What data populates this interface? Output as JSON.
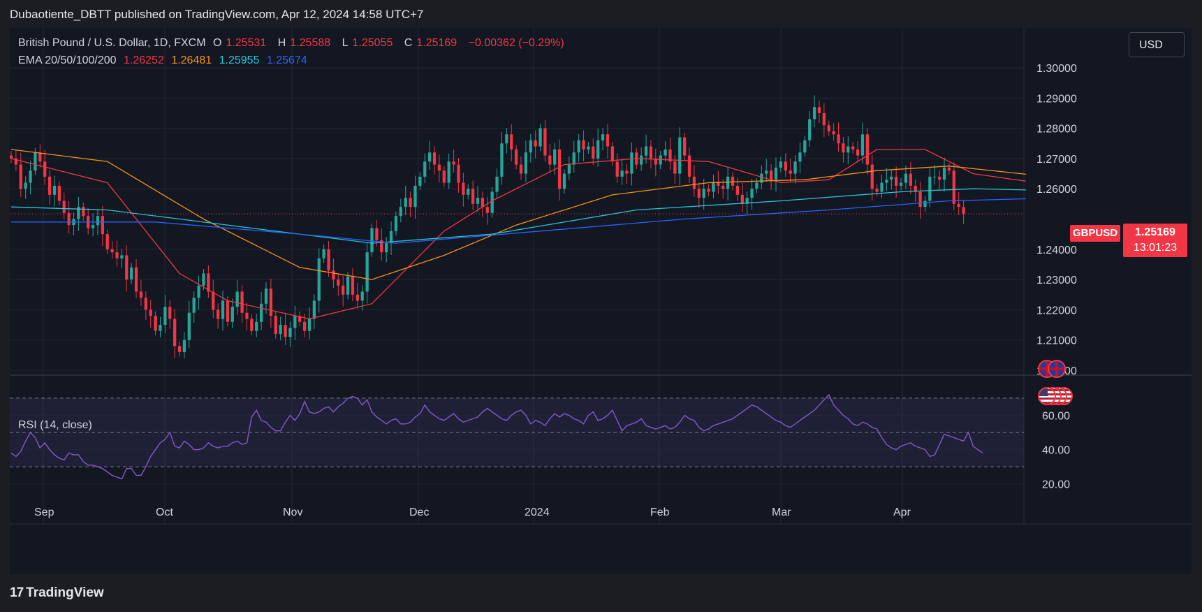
{
  "header": {
    "published": "Dubaotiente_DBTT published on TradingView.com, Apr 12, 2024 14:58 UTC+7"
  },
  "legend": {
    "title": "British Pound / U.S. Dollar, 1D, FXCM",
    "o_label": "O",
    "o": "1.25531",
    "h_label": "H",
    "h": "1.25588",
    "l_label": "L",
    "l": "1.25055",
    "c_label": "C",
    "c": "1.25169",
    "change": "−0.00362 (−0.29%)",
    "ema_label": "EMA 20/50/100/200",
    "ema20": "1.26252",
    "ema50": "1.26481",
    "ema100": "1.25955",
    "ema200": "1.25674",
    "rsi_label": "RSI (14, close)"
  },
  "toolbar": {
    "currency": "USD"
  },
  "price_tag": {
    "symbol": "GBPUSD",
    "price": "1.25169",
    "countdown": "13:01:23"
  },
  "footer": {
    "brand": "TradingView",
    "brand_mark": "17"
  },
  "colors": {
    "bg": "#131722",
    "up": "#26a69a",
    "down": "#f23645",
    "ema20": "#f23645",
    "ema50": "#f7931a",
    "ema100": "#26c6da",
    "ema200": "#2962ff",
    "rsi": "#7e57c2",
    "grid": "#232735",
    "text": "#d1d4dc"
  },
  "chart_data": [
    {
      "type": "candlestick",
      "x_labels": [
        "Sep",
        "Oct",
        "Nov",
        "Dec",
        "2024",
        "Feb",
        "Mar",
        "Apr"
      ],
      "y_ticks": [
        "1.30000",
        "1.29000",
        "1.28000",
        "1.27000",
        "1.26000",
        "1.24000",
        "1.23000",
        "1.22000",
        "1.21000",
        "1.20000"
      ],
      "ylim": [
        1.2,
        1.3
      ],
      "last_price": 1.25169,
      "closes": [
        1.27,
        1.268,
        1.26,
        1.262,
        1.266,
        1.272,
        1.269,
        1.264,
        1.258,
        1.261,
        1.256,
        1.252,
        1.248,
        1.25,
        1.254,
        1.251,
        1.247,
        1.248,
        1.251,
        1.245,
        1.24,
        1.239,
        1.237,
        1.238,
        1.23,
        1.234,
        1.226,
        1.224,
        1.22,
        1.218,
        1.213,
        1.215,
        1.221,
        1.217,
        1.208,
        1.206,
        1.21,
        1.219,
        1.224,
        1.228,
        1.232,
        1.226,
        1.22,
        1.217,
        1.223,
        1.216,
        1.221,
        1.226,
        1.219,
        1.217,
        1.213,
        1.216,
        1.222,
        1.227,
        1.218,
        1.212,
        1.215,
        1.211,
        1.214,
        1.218,
        1.216,
        1.213,
        1.217,
        1.223,
        1.237,
        1.24,
        1.233,
        1.23,
        1.228,
        1.225,
        1.231,
        1.225,
        1.223,
        1.226,
        1.239,
        1.247,
        1.243,
        1.239,
        1.242,
        1.246,
        1.251,
        1.254,
        1.257,
        1.254,
        1.261,
        1.264,
        1.269,
        1.272,
        1.268,
        1.266,
        1.262,
        1.269,
        1.268,
        1.262,
        1.258,
        1.26,
        1.255,
        1.257,
        1.254,
        1.252,
        1.259,
        1.264,
        1.275,
        1.278,
        1.273,
        1.268,
        1.265,
        1.272,
        1.276,
        1.274,
        1.28,
        1.271,
        1.268,
        1.273,
        1.26,
        1.265,
        1.268,
        1.272,
        1.276,
        1.273,
        1.274,
        1.27,
        1.276,
        1.278,
        1.274,
        1.269,
        1.264,
        1.266,
        1.265,
        1.272,
        1.268,
        1.271,
        1.274,
        1.27,
        1.268,
        1.271,
        1.273,
        1.269,
        1.265,
        1.277,
        1.271,
        1.264,
        1.26,
        1.257,
        1.26,
        1.259,
        1.262,
        1.261,
        1.26,
        1.264,
        1.261,
        1.258,
        1.255,
        1.257,
        1.26,
        1.262,
        1.265,
        1.266,
        1.263,
        1.267,
        1.269,
        1.266,
        1.265,
        1.269,
        1.272,
        1.276,
        1.283,
        1.287,
        1.285,
        1.281,
        1.279,
        1.278,
        1.275,
        1.272,
        1.274,
        1.273,
        1.271,
        1.278,
        1.268,
        1.26,
        1.259,
        1.262,
        1.263,
        1.264,
        1.261,
        1.262,
        1.265,
        1.261,
        1.259,
        1.254,
        1.256,
        1.264,
        1.264,
        1.263,
        1.267,
        1.266,
        1.255,
        1.254,
        1.2517
      ],
      "ema": {
        "ema20": [
          [
            0,
            1.27
          ],
          [
            20,
            1.262
          ],
          [
            35,
            1.232
          ],
          [
            45,
            1.223
          ],
          [
            62,
            1.217
          ],
          [
            75,
            1.222
          ],
          [
            90,
            1.246
          ],
          [
            100,
            1.256
          ],
          [
            115,
            1.268
          ],
          [
            130,
            1.27
          ],
          [
            145,
            1.269
          ],
          [
            160,
            1.262
          ],
          [
            170,
            1.263
          ],
          [
            180,
            1.273
          ],
          [
            190,
            1.273
          ],
          [
            200,
            1.265
          ],
          [
            211,
            1.2625
          ]
        ],
        "ema50": [
          [
            0,
            1.273
          ],
          [
            20,
            1.269
          ],
          [
            40,
            1.25
          ],
          [
            60,
            1.234
          ],
          [
            75,
            1.23
          ],
          [
            90,
            1.238
          ],
          [
            105,
            1.248
          ],
          [
            125,
            1.258
          ],
          [
            145,
            1.262
          ],
          [
            165,
            1.263
          ],
          [
            180,
            1.266
          ],
          [
            195,
            1.2675
          ],
          [
            211,
            1.2648
          ]
        ],
        "ema100": [
          [
            0,
            1.254
          ],
          [
            20,
            1.253
          ],
          [
            50,
            1.247
          ],
          [
            75,
            1.242
          ],
          [
            100,
            1.245
          ],
          [
            130,
            1.253
          ],
          [
            160,
            1.256
          ],
          [
            185,
            1.259
          ],
          [
            200,
            1.26
          ],
          [
            211,
            1.2596
          ]
        ],
        "ema200": [
          [
            0,
            1.249
          ],
          [
            30,
            1.249
          ],
          [
            60,
            1.245
          ],
          [
            80,
            1.242
          ],
          [
            110,
            1.246
          ],
          [
            140,
            1.25
          ],
          [
            170,
            1.253
          ],
          [
            195,
            1.256
          ],
          [
            211,
            1.2567
          ]
        ]
      }
    },
    {
      "type": "line",
      "name": "RSI (14, close)",
      "y_ticks": [
        "60.00",
        "40.00",
        "20.00"
      ],
      "ylim": [
        15,
        72
      ],
      "bands": [
        30,
        50,
        70
      ],
      "values": [
        38,
        36,
        39,
        45,
        50,
        47,
        41,
        44,
        40,
        37,
        35,
        34,
        38,
        37,
        37,
        33,
        31,
        31,
        30,
        29,
        27,
        25,
        24,
        23,
        29,
        29,
        25,
        25,
        30,
        36,
        40,
        44,
        46,
        50,
        42,
        41,
        45,
        43,
        40,
        40,
        41,
        44,
        42,
        41,
        42,
        42,
        44,
        45,
        43,
        44,
        59,
        63,
        57,
        56,
        53,
        51,
        51,
        56,
        60,
        57,
        61,
        68,
        62,
        61,
        62,
        64,
        65,
        62,
        65,
        67,
        70,
        71,
        70,
        66,
        69,
        62,
        59,
        57,
        55,
        57,
        58,
        55,
        55,
        56,
        59,
        61,
        66,
        62,
        60,
        58,
        57,
        59,
        61,
        58,
        56,
        57,
        58,
        59,
        62,
        64,
        62,
        60,
        58,
        57,
        60,
        62,
        63,
        60,
        55,
        57,
        56,
        54,
        58,
        61,
        59,
        61,
        60,
        58,
        57,
        55,
        60,
        62,
        57,
        58,
        60,
        63,
        57,
        51,
        54,
        55,
        56,
        58,
        54,
        53,
        52,
        53,
        54,
        52,
        53,
        56,
        60,
        58,
        57,
        53,
        51,
        52,
        54,
        55,
        56,
        57,
        58,
        60,
        62,
        64,
        66,
        65,
        63,
        61,
        59,
        57,
        56,
        54,
        53,
        55,
        57,
        59,
        61,
        63,
        66,
        69,
        72,
        66,
        63,
        60,
        58,
        55,
        54,
        56,
        55,
        53,
        52,
        47,
        43,
        41,
        40,
        42,
        43,
        44,
        42,
        41,
        40,
        36,
        37,
        43,
        49,
        48,
        47,
        46,
        45,
        50,
        42,
        40,
        38
      ]
    }
  ]
}
